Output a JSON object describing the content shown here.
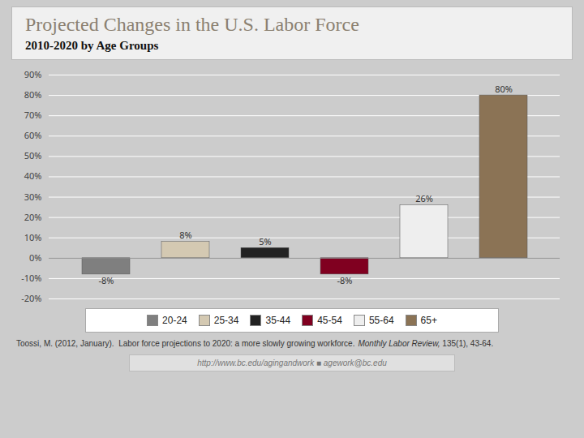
{
  "chart_data": {
    "type": "bar",
    "title": "Projected Changes in the U.S. Labor Force",
    "subtitle": "2010-2020 by Age Groups",
    "categories": [
      "20-24",
      "25-34",
      "35-44",
      "45-54",
      "55-64",
      "65+"
    ],
    "values": [
      -8,
      8,
      5,
      -8,
      26,
      80
    ],
    "value_labels": [
      "-8%",
      "8%",
      "5%",
      "-8%",
      "26%",
      "80%"
    ],
    "data_labels": true,
    "colors": [
      "#7f7f7f",
      "#d4c9b2",
      "#222222",
      "#800020",
      "#eeeeee",
      "#8b7355"
    ],
    "ylim": [
      -20,
      90
    ],
    "yticks": [
      {
        "value": -20,
        "label": "-20%"
      },
      {
        "value": -10,
        "label": "-10%"
      },
      {
        "value": 0,
        "label": "0%"
      },
      {
        "value": 10,
        "label": "10%"
      },
      {
        "value": 20,
        "label": "20%"
      },
      {
        "value": 30,
        "label": "30%"
      },
      {
        "value": 40,
        "label": "40%"
      },
      {
        "value": 50,
        "label": "50%"
      },
      {
        "value": 60,
        "label": "60%"
      },
      {
        "value": 70,
        "label": "70%"
      },
      {
        "value": 80,
        "label": "80%"
      },
      {
        "value": 90,
        "label": "90%"
      }
    ],
    "grid": true,
    "tick_labels": "y",
    "legend": "bottom",
    "annotations": [
      "Toossi, M. (2012, January).  Labor force projections to 2020: a more slowly growing workforce.",
      "Monthly Labor Review,",
      " 135(1), 43-64.",
      "http://www.bc.edu/agingandwork  ■  agework@bc.edu"
    ]
  }
}
